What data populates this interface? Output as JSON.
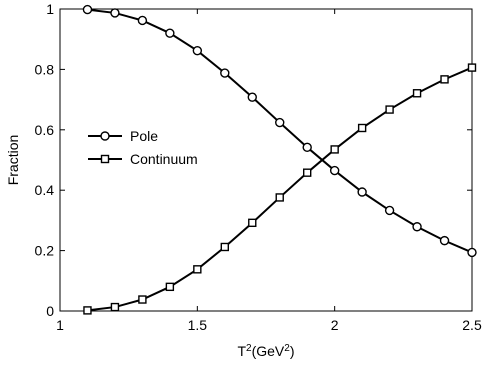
{
  "chart_data": {
    "type": "line",
    "x": [
      1.1,
      1.2,
      1.3,
      1.4,
      1.5,
      1.6,
      1.7,
      1.8,
      1.9,
      2.0,
      2.1,
      2.2,
      2.3,
      2.4,
      2.5
    ],
    "series": [
      {
        "name": "Pole",
        "marker": "circle",
        "values": [
          0.998,
          0.987,
          0.962,
          0.92,
          0.862,
          0.788,
          0.708,
          0.624,
          0.542,
          0.465,
          0.394,
          0.333,
          0.279,
          0.233,
          0.194
        ]
      },
      {
        "name": "Continuum",
        "marker": "square",
        "values": [
          0.002,
          0.013,
          0.038,
          0.08,
          0.138,
          0.212,
          0.292,
          0.376,
          0.458,
          0.535,
          0.606,
          0.667,
          0.721,
          0.767,
          0.806
        ]
      }
    ],
    "xlabel": "T²(GeV²)",
    "xlabel_parts": {
      "base": "T",
      "sup1": "2",
      "mid": "(GeV",
      "sup2": "2",
      "end": ")"
    },
    "ylabel": "Fraction",
    "xlim": [
      1,
      2.5
    ],
    "ylim": [
      0,
      1
    ],
    "xticks": [
      1,
      1.5,
      2,
      2.5
    ],
    "xtick_labels": [
      "1",
      "1.5",
      "2",
      "2.5"
    ],
    "yticks": [
      0,
      0.2,
      0.4,
      0.6,
      0.8,
      1
    ],
    "ytick_labels": [
      "0",
      "0.2",
      "0.4",
      "0.6",
      "0.8",
      "1"
    ],
    "grid": false,
    "legend_position": "center-left",
    "line_color": "#000000"
  }
}
